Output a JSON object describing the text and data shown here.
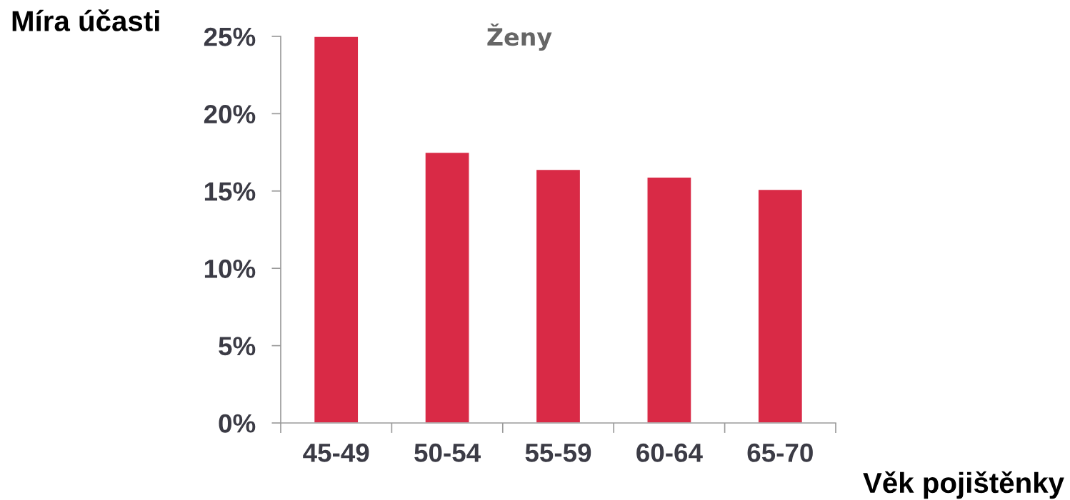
{
  "chart_data": {
    "type": "bar",
    "title": "Ženy",
    "xlabel": "Věk pojištěnky",
    "ylabel": "Míra účasti",
    "categories": [
      "45-49",
      "50-54",
      "55-59",
      "60-64",
      "65-70"
    ],
    "values": [
      25,
      17.5,
      16.4,
      15.9,
      15.1
    ],
    "color": "#d92a46",
    "ylim": [
      0,
      25
    ],
    "yticks": [
      {
        "value": 0,
        "label": "0%"
      },
      {
        "value": 5,
        "label": "5%"
      },
      {
        "value": 10,
        "label": "10%"
      },
      {
        "value": 15,
        "label": "15%"
      },
      {
        "value": 20,
        "label": "20%"
      },
      {
        "value": 25,
        "label": "25%"
      }
    ],
    "grid": false
  }
}
